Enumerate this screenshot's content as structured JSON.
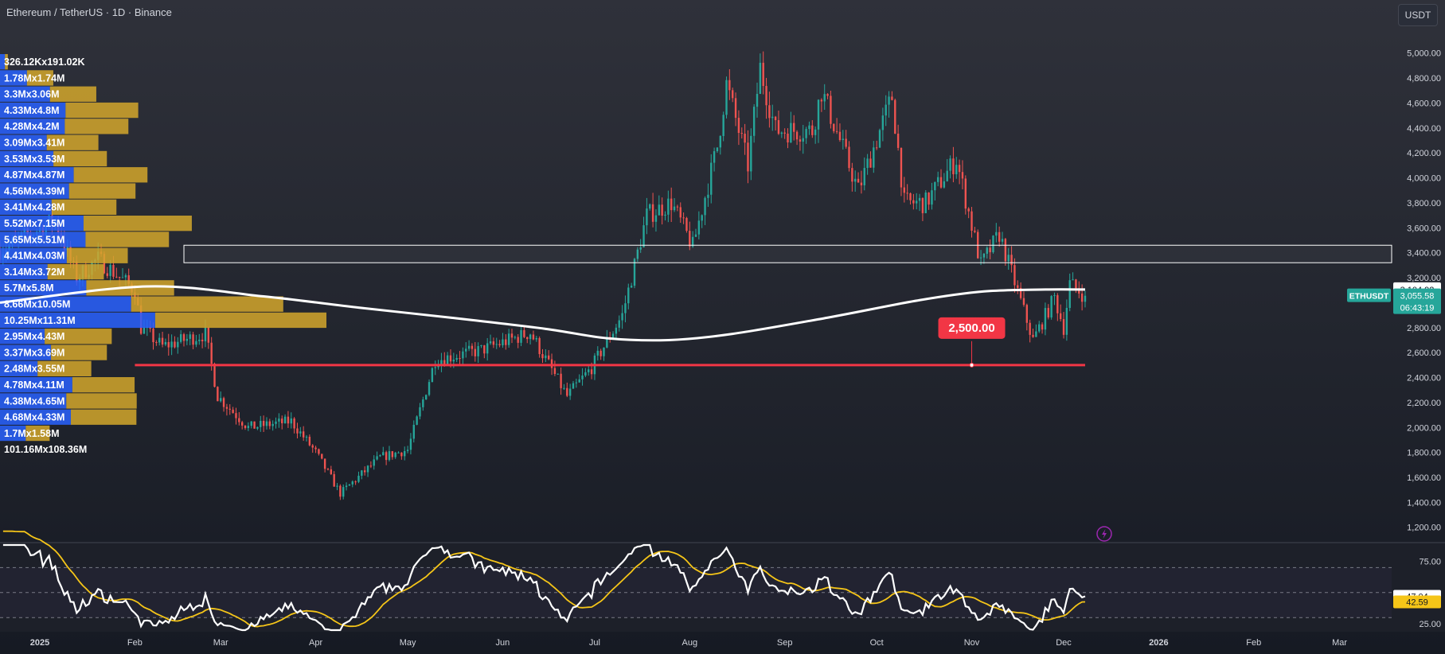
{
  "header": {
    "title": "Ethereum / TetherUS · 1D · Binance",
    "currency": "USDT"
  },
  "colors": {
    "background": "#1b1e26",
    "up": "#26a69a",
    "down": "#ef5350",
    "ma": "#ffffff",
    "level": "#f23645",
    "vp_buy": "#2962ff",
    "vp_sell": "#d4a72c",
    "rsi": "#ffffff",
    "rsi_ma": "#f5c518",
    "zone_border": "#ffffff"
  },
  "chart_data": {
    "type": "candlestick",
    "symbol": "ETHUSDT",
    "price_axis": {
      "ticks": [
        "5,000.00",
        "4,800.00",
        "4,600.00",
        "4,400.00",
        "4,200.00",
        "4,000.00",
        "3,800.00",
        "3,600.00",
        "3,400.00",
        "3,200.00",
        "3,000.00",
        "2,800.00",
        "2,600.00",
        "2,400.00",
        "2,200.00",
        "2,000.00",
        "1,800.00",
        "1,600.00",
        "1,400.00",
        "1,200.00"
      ],
      "tick_values": [
        5000,
        4800,
        4600,
        4400,
        4200,
        4000,
        3800,
        3600,
        3400,
        3200,
        3000,
        2800,
        2600,
        2400,
        2200,
        2000,
        1800,
        1600,
        1400,
        1200
      ],
      "range": [
        1090,
        5170
      ]
    },
    "time_axis": {
      "labels": [
        "2025",
        "Feb",
        "Mar",
        "Apr",
        "May",
        "Jun",
        "Jul",
        "Aug",
        "Sep",
        "Oct",
        "Nov",
        "Dec",
        "2026",
        "Feb",
        "Mar"
      ],
      "dates": [
        "2025-01-01",
        "2025-02-01",
        "2025-03-01",
        "2025-04-01",
        "2025-05-01",
        "2025-06-01",
        "2025-07-01",
        "2025-08-01",
        "2025-09-01",
        "2025-10-01",
        "2025-11-01",
        "2025-12-01",
        "2026-01-01",
        "2026-02-01",
        "2026-03-01"
      ],
      "start": "2024-12-19",
      "end": "2026-03-18"
    },
    "price_path_anchors": [
      {
        "date": "2024-12-19",
        "close": 3420
      },
      {
        "date": "2025-01-06",
        "close": 3660
      },
      {
        "date": "2025-01-13",
        "close": 3200
      },
      {
        "date": "2025-01-20",
        "close": 3350
      },
      {
        "date": "2025-02-01",
        "close": 3100
      },
      {
        "date": "2025-02-03",
        "close": 2800
      },
      {
        "date": "2025-02-10",
        "close": 2650
      },
      {
        "date": "2025-02-24",
        "close": 2750
      },
      {
        "date": "2025-02-28",
        "close": 2250
      },
      {
        "date": "2025-03-10",
        "close": 2000
      },
      {
        "date": "2025-03-24",
        "close": 2050
      },
      {
        "date": "2025-04-01",
        "close": 1800
      },
      {
        "date": "2025-04-09",
        "close": 1470
      },
      {
        "date": "2025-04-22",
        "close": 1760
      },
      {
        "date": "2025-05-01",
        "close": 1820
      },
      {
        "date": "2025-05-10",
        "close": 2540
      },
      {
        "date": "2025-05-25",
        "close": 2620
      },
      {
        "date": "2025-06-10",
        "close": 2760
      },
      {
        "date": "2025-06-22",
        "close": 2250
      },
      {
        "date": "2025-06-30",
        "close": 2480
      },
      {
        "date": "2025-07-10",
        "close": 2900
      },
      {
        "date": "2025-07-18",
        "close": 3700
      },
      {
        "date": "2025-07-26",
        "close": 3800
      },
      {
        "date": "2025-08-02",
        "close": 3450
      },
      {
        "date": "2025-08-10",
        "close": 4250
      },
      {
        "date": "2025-08-13",
        "close": 4750
      },
      {
        "date": "2025-08-20",
        "close": 4100
      },
      {
        "date": "2025-08-24",
        "close": 4880
      },
      {
        "date": "2025-08-29",
        "close": 4380
      },
      {
        "date": "2025-09-10",
        "close": 4380
      },
      {
        "date": "2025-09-13",
        "close": 4700
      },
      {
        "date": "2025-09-25",
        "close": 3900
      },
      {
        "date": "2025-10-06",
        "close": 4650
      },
      {
        "date": "2025-10-10",
        "close": 3800
      },
      {
        "date": "2025-10-17",
        "close": 3800
      },
      {
        "date": "2025-10-27",
        "close": 4150
      },
      {
        "date": "2025-11-04",
        "close": 3300
      },
      {
        "date": "2025-11-10",
        "close": 3550
      },
      {
        "date": "2025-11-21",
        "close": 2700
      },
      {
        "date": "2025-11-28",
        "close": 3040
      },
      {
        "date": "2025-12-01",
        "close": 2800
      },
      {
        "date": "2025-12-03",
        "close": 3150
      },
      {
        "date": "2025-12-08",
        "close": 3055.58
      }
    ],
    "moving_average": [
      {
        "date": "2024-12-19",
        "value": 3000
      },
      {
        "date": "2025-02-05",
        "value": 3130
      },
      {
        "date": "2025-03-15",
        "value": 3050
      },
      {
        "date": "2025-04-15",
        "value": 2960
      },
      {
        "date": "2025-05-15",
        "value": 2880
      },
      {
        "date": "2025-06-15",
        "value": 2790
      },
      {
        "date": "2025-07-05",
        "value": 2715
      },
      {
        "date": "2025-07-25",
        "value": 2700
      },
      {
        "date": "2025-08-15",
        "value": 2750
      },
      {
        "date": "2025-09-15",
        "value": 2880
      },
      {
        "date": "2025-10-15",
        "value": 3020
      },
      {
        "date": "2025-11-05",
        "value": 3090
      },
      {
        "date": "2025-11-25",
        "value": 3105
      },
      {
        "date": "2025-12-08",
        "value": 3104.92
      }
    ],
    "horizontal_level": {
      "value": 2500,
      "label": "2,500.00",
      "from": "2025-02-01",
      "to": "2025-12-08"
    },
    "resistance_zone": {
      "from_price": 3320,
      "to_price": 3460,
      "from": "2025-02-17"
    },
    "last_price": {
      "symbol_label": "ETHUSDT",
      "price": "3,055.58",
      "countdown": "06:43:19",
      "ma_label": "3,104.92",
      "ma_value": 3104.92
    },
    "volume_profile": {
      "rows": [
        {
          "label": "326.12Kx191.02K",
          "buy": 326.12,
          "sell": 191.02
        },
        {
          "label": "1.78Mx1.74M",
          "buy": 1780,
          "sell": 1740
        },
        {
          "label": "3.3Mx3.06M",
          "buy": 3300,
          "sell": 3060
        },
        {
          "label": "4.33Mx4.8M",
          "buy": 4330,
          "sell": 4800
        },
        {
          "label": "4.28Mx4.2M",
          "buy": 4280,
          "sell": 4200
        },
        {
          "label": "3.09Mx3.41M",
          "buy": 3090,
          "sell": 3410
        },
        {
          "label": "3.53Mx3.53M",
          "buy": 3530,
          "sell": 3530
        },
        {
          "label": "4.87Mx4.87M",
          "buy": 4870,
          "sell": 4870
        },
        {
          "label": "4.56Mx4.39M",
          "buy": 4560,
          "sell": 4390
        },
        {
          "label": "3.41Mx4.28M",
          "buy": 3410,
          "sell": 4280
        },
        {
          "label": "5.52Mx7.15M",
          "buy": 5520,
          "sell": 7150
        },
        {
          "label": "5.65Mx5.51M",
          "buy": 5650,
          "sell": 5510
        },
        {
          "label": "4.41Mx4.03M",
          "buy": 4410,
          "sell": 4030
        },
        {
          "label": "3.14Mx3.72M",
          "buy": 3140,
          "sell": 3720
        },
        {
          "label": "5.7Mx5.8M",
          "buy": 5700,
          "sell": 5800
        },
        {
          "label": "8.66Mx10.05M",
          "buy": 8660,
          "sell": 10050
        },
        {
          "label": "10.25Mx11.31M",
          "buy": 10250,
          "sell": 11310
        },
        {
          "label": "2.95Mx4.43M",
          "buy": 2950,
          "sell": 4430
        },
        {
          "label": "3.37Mx3.69M",
          "buy": 3370,
          "sell": 3690
        },
        {
          "label": "2.48Mx3.55M",
          "buy": 2480,
          "sell": 3550
        },
        {
          "label": "4.78Mx4.11M",
          "buy": 4780,
          "sell": 4110
        },
        {
          "label": "4.38Mx4.65M",
          "buy": 4380,
          "sell": 4650
        },
        {
          "label": "4.68Mx4.33M",
          "buy": 4680,
          "sell": 4330
        },
        {
          "label": "1.7Mx1.58M",
          "buy": 1700,
          "sell": 1580
        }
      ],
      "total_label": "101.16Mx108.36M"
    },
    "rsi": {
      "ticks": [
        "75.00",
        "25.00"
      ],
      "tick_values": [
        75,
        25
      ],
      "range": [
        20,
        88
      ],
      "level_upper": 70,
      "level_middle": 50,
      "level_lower": 30,
      "rsi_label": "47.04",
      "rsi_value": 47.04,
      "ma_label": "42.59",
      "ma_value": 42.59
    }
  }
}
